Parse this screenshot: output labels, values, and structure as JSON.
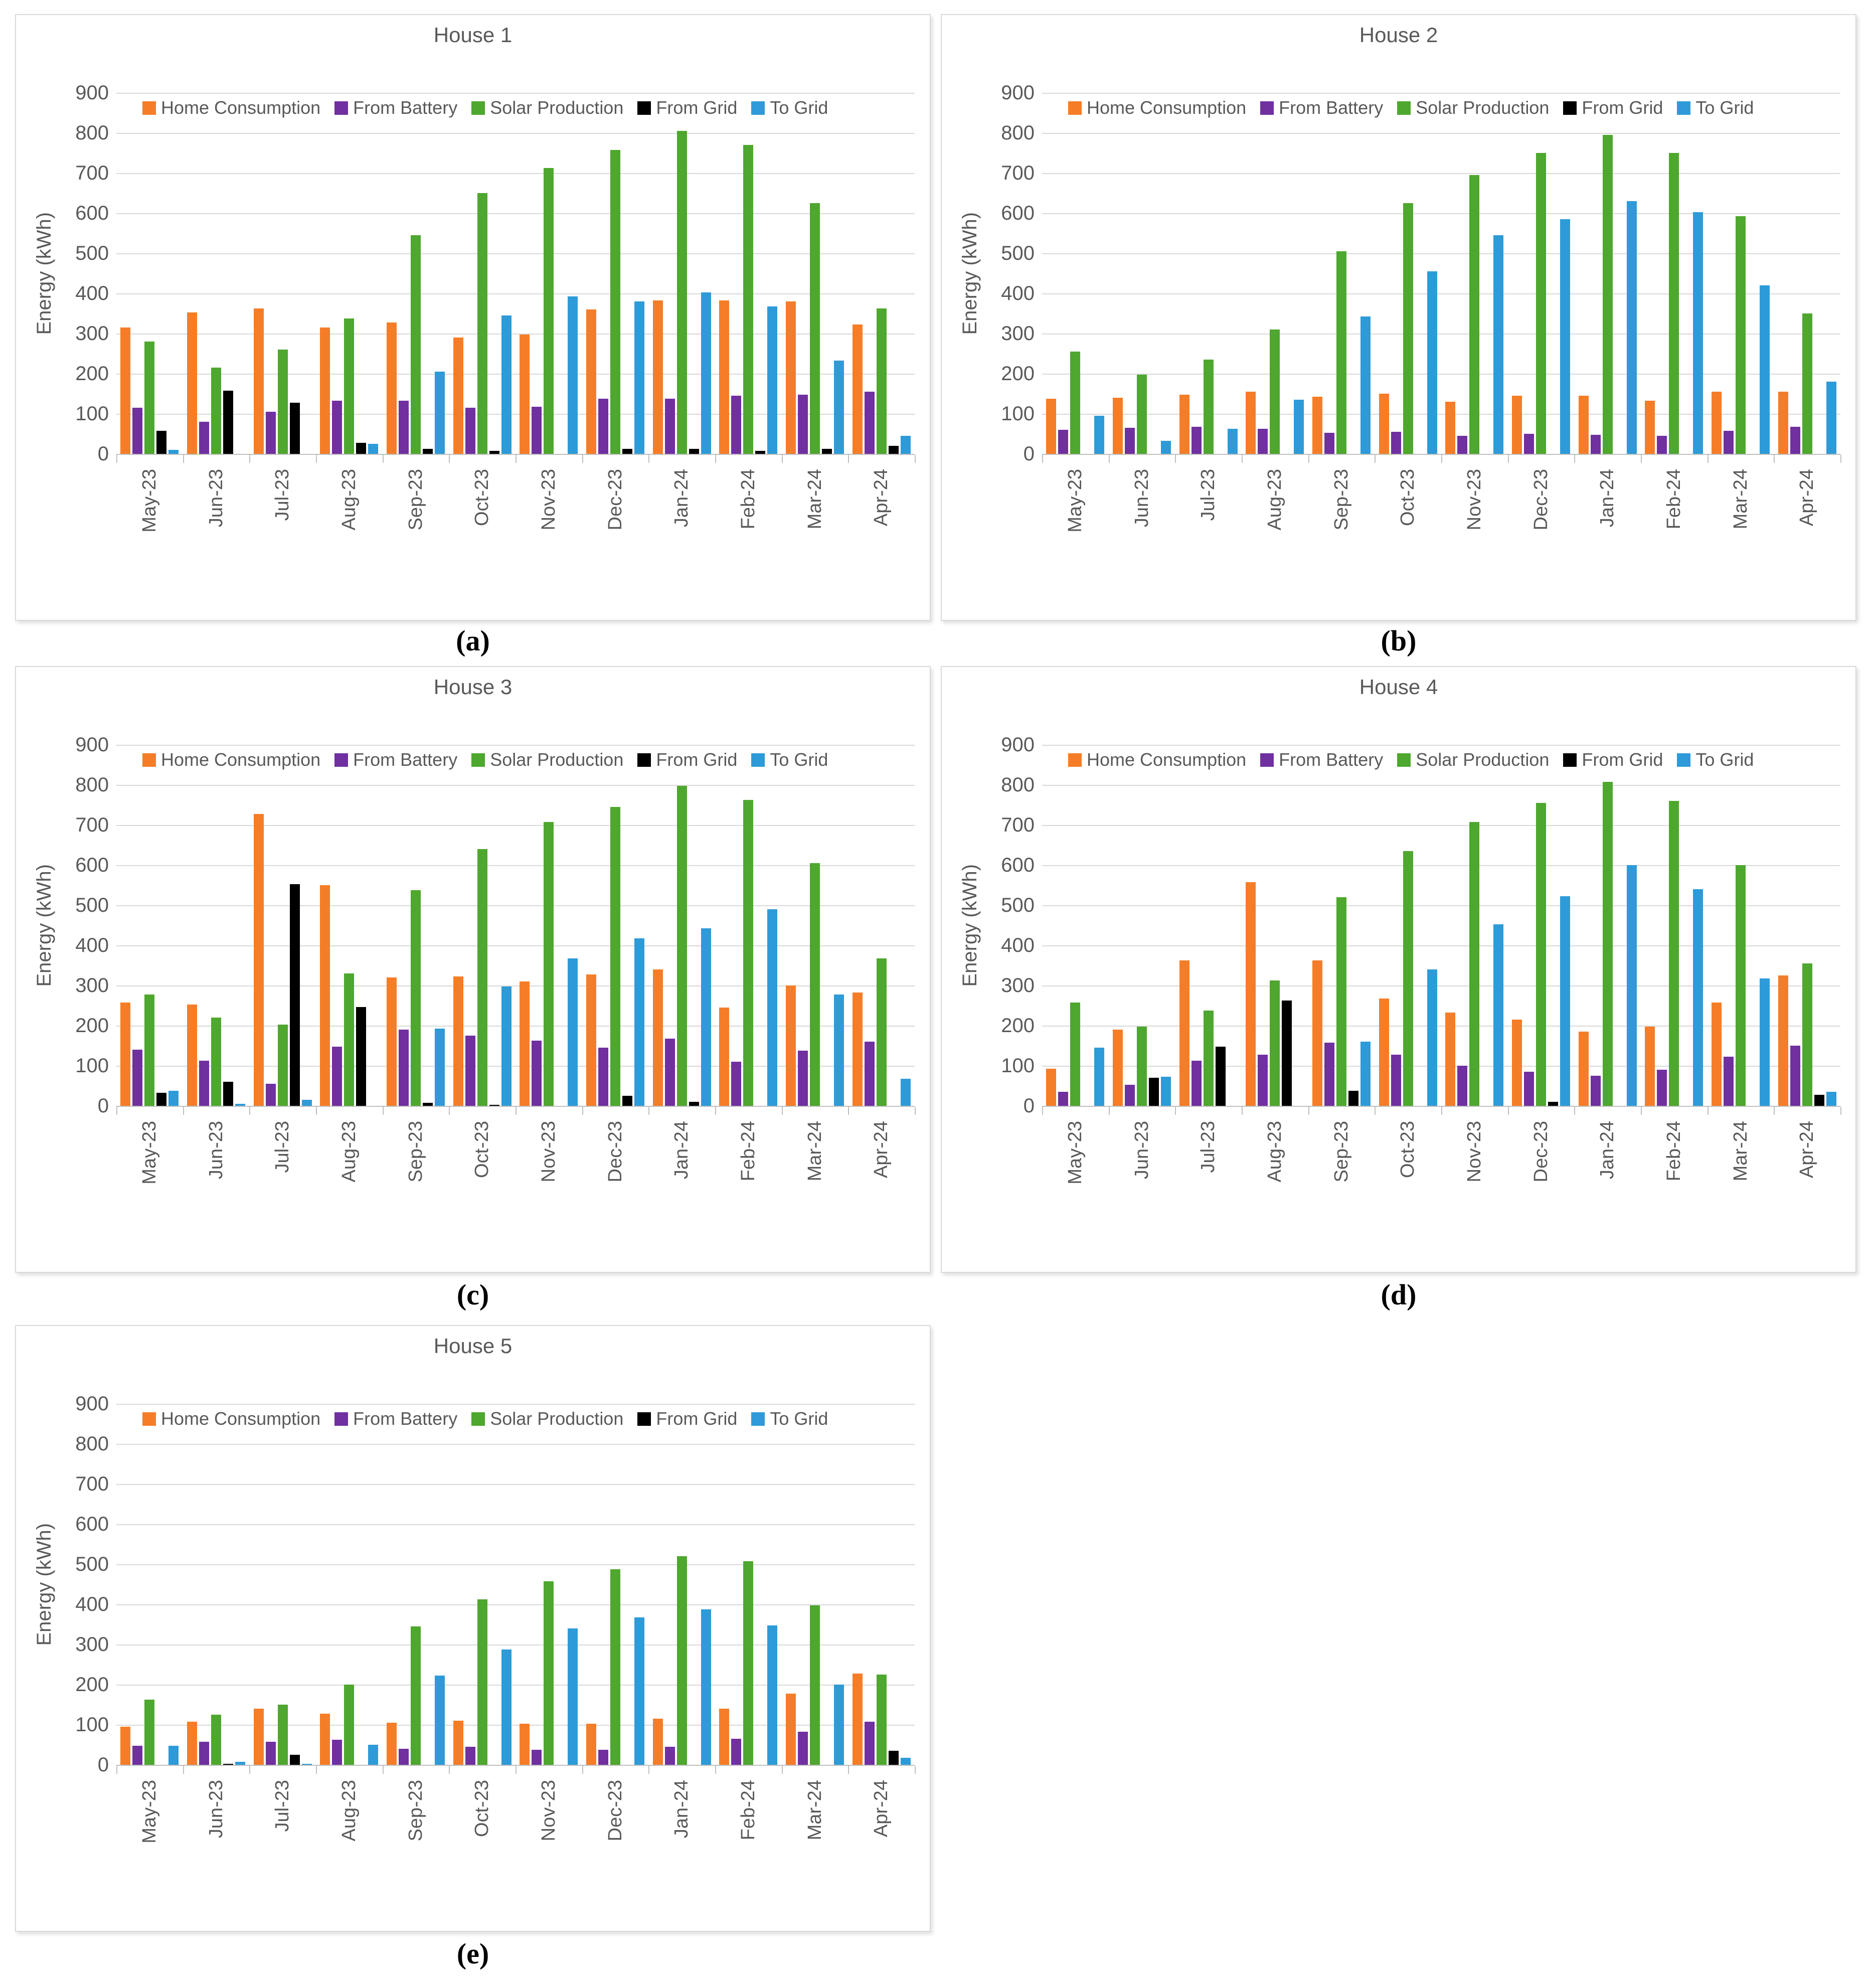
{
  "colors": {
    "home_consumption": "#F57D28",
    "from_battery": "#7030A0",
    "solar_production": "#4EA72E",
    "from_grid": "#000000",
    "to_grid": "#2E9BD8",
    "gridline": "#D9D9D9",
    "axis_line": "#BFBFBF",
    "axis_text": "#595959"
  },
  "months": [
    "May-23",
    "Jun-23",
    "Jul-23",
    "Aug-23",
    "Sep-23",
    "Oct-23",
    "Nov-23",
    "Dec-23",
    "Jan-24",
    "Feb-24",
    "Mar-24",
    "Apr-24"
  ],
  "series_names": [
    "Home Consumption",
    "From Battery",
    "Solar Production",
    "From Grid",
    "To Grid"
  ],
  "chart_data": [
    {
      "type": "bar",
      "title": "House 1",
      "sublabel": "(a)",
      "ylabel": "Energy (kWh)",
      "ylim": [
        0,
        900
      ],
      "ytick_step": 100,
      "grid": true,
      "legend_position": "top",
      "categories": [
        "May-23",
        "Jun-23",
        "Jul-23",
        "Aug-23",
        "Sep-23",
        "Oct-23",
        "Nov-23",
        "Dec-23",
        "Jan-24",
        "Feb-24",
        "Mar-24",
        "Apr-24"
      ],
      "series": [
        {
          "name": "Home Consumption",
          "color_key": "home_consumption",
          "values": [
            315,
            352,
            362,
            315,
            327,
            290,
            297,
            360,
            383,
            382,
            380,
            322
          ]
        },
        {
          "name": "From Battery",
          "color_key": "from_battery",
          "values": [
            115,
            80,
            105,
            133,
            133,
            115,
            117,
            137,
            138,
            145,
            148,
            155
          ]
        },
        {
          "name": "Solar Production",
          "color_key": "solar_production",
          "values": [
            280,
            215,
            260,
            337,
            545,
            650,
            712,
            757,
            805,
            770,
            625,
            363
          ]
        },
        {
          "name": "From Grid",
          "color_key": "from_grid",
          "values": [
            58,
            158,
            128,
            28,
            13,
            8,
            0,
            12,
            12,
            7,
            13,
            20
          ]
        },
        {
          "name": "To Grid",
          "color_key": "to_grid",
          "values": [
            10,
            0,
            0,
            25,
            205,
            345,
            393,
            380,
            403,
            368,
            232,
            45
          ]
        }
      ]
    },
    {
      "type": "bar",
      "title": "House 2",
      "sublabel": "(b)",
      "ylabel": "Energy (kWh)",
      "ylim": [
        0,
        900
      ],
      "ytick_step": 100,
      "grid": true,
      "legend_position": "top",
      "categories": [
        "May-23",
        "Jun-23",
        "Jul-23",
        "Aug-23",
        "Sep-23",
        "Oct-23",
        "Nov-23",
        "Dec-23",
        "Jan-24",
        "Feb-24",
        "Mar-24",
        "Apr-24"
      ],
      "series": [
        {
          "name": "Home Consumption",
          "color_key": "home_consumption",
          "values": [
            138,
            140,
            147,
            155,
            143,
            150,
            130,
            145,
            145,
            132,
            155,
            155
          ]
        },
        {
          "name": "From Battery",
          "color_key": "from_battery",
          "values": [
            60,
            65,
            67,
            62,
            53,
            55,
            45,
            50,
            48,
            45,
            58,
            68
          ]
        },
        {
          "name": "Solar Production",
          "color_key": "solar_production",
          "values": [
            255,
            197,
            235,
            310,
            505,
            625,
            695,
            750,
            795,
            750,
            593,
            350
          ]
        },
        {
          "name": "From Grid",
          "color_key": "from_grid",
          "values": [
            0,
            0,
            0,
            0,
            0,
            0,
            0,
            0,
            0,
            0,
            0,
            0
          ]
        },
        {
          "name": "To Grid",
          "color_key": "to_grid",
          "values": [
            95,
            33,
            63,
            135,
            342,
            455,
            545,
            585,
            630,
            603,
            420,
            180
          ]
        }
      ]
    },
    {
      "type": "bar",
      "title": "House 3",
      "sublabel": "(c)",
      "ylabel": "Energy (kWh)",
      "ylim": [
        0,
        900
      ],
      "ytick_step": 100,
      "grid": true,
      "legend_position": "top",
      "categories": [
        "May-23",
        "Jun-23",
        "Jul-23",
        "Aug-23",
        "Sep-23",
        "Oct-23",
        "Nov-23",
        "Dec-23",
        "Jan-24",
        "Feb-24",
        "Mar-24",
        "Apr-24"
      ],
      "series": [
        {
          "name": "Home Consumption",
          "color_key": "home_consumption",
          "values": [
            258,
            253,
            727,
            550,
            320,
            322,
            310,
            327,
            340,
            245,
            300,
            283
          ]
        },
        {
          "name": "From Battery",
          "color_key": "from_battery",
          "values": [
            140,
            113,
            55,
            147,
            190,
            175,
            163,
            145,
            167,
            110,
            138,
            160
          ]
        },
        {
          "name": "Solar Production",
          "color_key": "solar_production",
          "values": [
            278,
            220,
            203,
            330,
            538,
            640,
            707,
            745,
            798,
            762,
            605,
            368
          ]
        },
        {
          "name": "From Grid",
          "color_key": "from_grid",
          "values": [
            33,
            60,
            552,
            246,
            8,
            3,
            0,
            25,
            10,
            0,
            0,
            0
          ]
        },
        {
          "name": "To Grid",
          "color_key": "to_grid",
          "values": [
            38,
            5,
            15,
            0,
            192,
            297,
            367,
            418,
            443,
            490,
            278,
            68
          ]
        }
      ]
    },
    {
      "type": "bar",
      "title": "House 4",
      "sublabel": "(d)",
      "ylabel": "Energy (kWh)",
      "ylim": [
        0,
        900
      ],
      "ytick_step": 100,
      "grid": true,
      "legend_position": "top",
      "categories": [
        "May-23",
        "Jun-23",
        "Jul-23",
        "Aug-23",
        "Sep-23",
        "Oct-23",
        "Nov-23",
        "Dec-23",
        "Jan-24",
        "Feb-24",
        "Mar-24",
        "Apr-24"
      ],
      "series": [
        {
          "name": "Home Consumption",
          "color_key": "home_consumption",
          "values": [
            93,
            190,
            362,
            558,
            362,
            267,
            232,
            215,
            185,
            198,
            258,
            325
          ]
        },
        {
          "name": "From Battery",
          "color_key": "from_battery",
          "values": [
            35,
            53,
            113,
            128,
            157,
            127,
            100,
            85,
            75,
            90,
            122,
            150
          ]
        },
        {
          "name": "Solar Production",
          "color_key": "solar_production",
          "values": [
            258,
            198,
            237,
            312,
            520,
            635,
            707,
            755,
            808,
            760,
            600,
            355
          ]
        },
        {
          "name": "From Grid",
          "color_key": "from_grid",
          "values": [
            0,
            70,
            147,
            262,
            38,
            0,
            0,
            10,
            0,
            0,
            0,
            28
          ]
        },
        {
          "name": "To Grid",
          "color_key": "to_grid",
          "values": [
            145,
            72,
            0,
            0,
            160,
            340,
            452,
            522,
            600,
            540,
            318,
            35
          ]
        }
      ]
    },
    {
      "type": "bar",
      "title": "House 5",
      "sublabel": "(e)",
      "ylabel": "Energy (kWh)",
      "ylim": [
        0,
        900
      ],
      "ytick_step": 100,
      "grid": true,
      "legend_position": "top",
      "categories": [
        "May-23",
        "Jun-23",
        "Jul-23",
        "Aug-23",
        "Sep-23",
        "Oct-23",
        "Nov-23",
        "Dec-23",
        "Jan-24",
        "Feb-24",
        "Mar-24",
        "Apr-24"
      ],
      "series": [
        {
          "name": "Home Consumption",
          "color_key": "home_consumption",
          "values": [
            95,
            108,
            140,
            128,
            105,
            110,
            103,
            102,
            115,
            140,
            177,
            228
          ]
        },
        {
          "name": "From Battery",
          "color_key": "from_battery",
          "values": [
            47,
            57,
            58,
            62,
            40,
            45,
            38,
            38,
            45,
            65,
            82,
            107
          ]
        },
        {
          "name": "Solar Production",
          "color_key": "solar_production",
          "values": [
            162,
            125,
            150,
            200,
            345,
            412,
            458,
            487,
            520,
            508,
            398,
            225
          ]
        },
        {
          "name": "From Grid",
          "color_key": "from_grid",
          "values": [
            0,
            2,
            25,
            0,
            0,
            0,
            0,
            0,
            0,
            0,
            0,
            35
          ]
        },
        {
          "name": "To Grid",
          "color_key": "to_grid",
          "values": [
            47,
            8,
            3,
            50,
            223,
            287,
            340,
            367,
            388,
            348,
            200,
            18
          ]
        }
      ]
    }
  ]
}
